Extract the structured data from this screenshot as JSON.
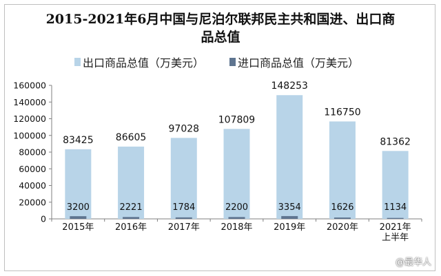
{
  "title_line1": "2015-2021年6月中国与尼泊尔联邦民主共和国进、出口商",
  "title_line2": "品总值",
  "watermark": "@最华人",
  "colors": {
    "export": "#b8d4e8",
    "import": "#5f7590",
    "axis": "#7f7f7f"
  },
  "chart_data": {
    "type": "bar",
    "title": "2015-2021年6月中国与尼泊尔联邦民主共和国进、出口商品总值",
    "categories": [
      [
        "2015年"
      ],
      [
        "2016年"
      ],
      [
        "2017年"
      ],
      [
        "2018年"
      ],
      [
        "2019年"
      ],
      [
        "2020年"
      ],
      [
        "2021年",
        "上半年"
      ]
    ],
    "series": [
      {
        "name": "出口商品总值（万美元）",
        "values": [
          83425,
          86605,
          97028,
          107809,
          148253,
          116750,
          81362
        ]
      },
      {
        "name": "进口商品总值（万美元）",
        "values": [
          3200,
          2221,
          1784,
          2200,
          3354,
          1626,
          1134
        ]
      }
    ],
    "ylim": [
      0,
      160000
    ],
    "yticks": [
      0,
      20000,
      40000,
      60000,
      80000,
      100000,
      120000,
      140000,
      160000
    ],
    "legend_position": "top",
    "grid": false
  }
}
